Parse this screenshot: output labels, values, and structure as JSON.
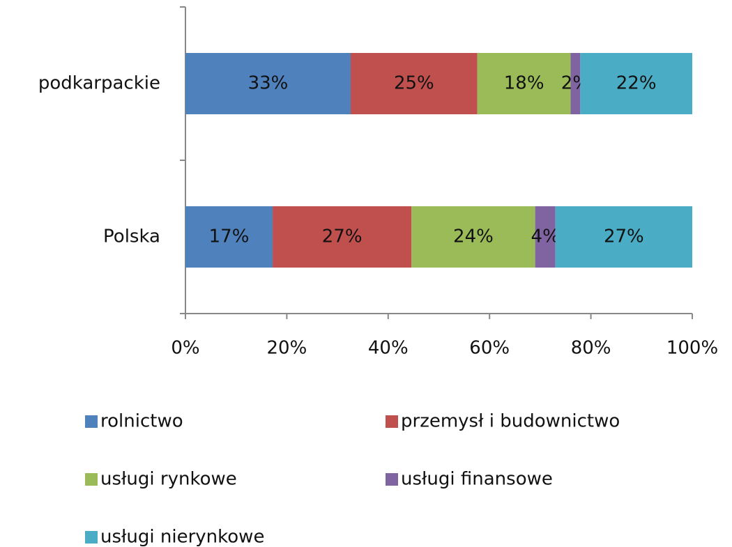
{
  "chart_data": {
    "type": "bar",
    "orientation": "horizontal",
    "stacked": true,
    "categories": [
      "podkarpackie",
      "Polska"
    ],
    "series": [
      {
        "name": "rolnictwo",
        "color": "#4f81bd",
        "values": [
          32.6,
          17.2
        ],
        "value_labels": [
          "33%",
          "17%"
        ]
      },
      {
        "name": "przemysł i budownictwo",
        "color": "#c0504d",
        "values": [
          25.0,
          27.4
        ],
        "value_labels": [
          "25%",
          "27%"
        ]
      },
      {
        "name": "usługi rynkowe",
        "color": "#9bbb59",
        "values": [
          18.4,
          24.4
        ],
        "value_labels": [
          "18%",
          "24%"
        ]
      },
      {
        "name": "usługi finansowe",
        "color": "#8064a2",
        "values": [
          1.9,
          4.0
        ],
        "value_labels": [
          "2%",
          "4%"
        ]
      },
      {
        "name": "usługi nierynkowe",
        "color": "#4bacc6",
        "values": [
          22.1,
          27.0
        ],
        "value_labels": [
          "22%",
          "27%"
        ]
      }
    ],
    "xlim": [
      0,
      100
    ],
    "xticks": [
      {
        "value": 0,
        "label": "0%"
      },
      {
        "value": 20,
        "label": "20%"
      },
      {
        "value": 40,
        "label": "40%"
      },
      {
        "value": 60,
        "label": "60%"
      },
      {
        "value": 80,
        "label": "80%"
      },
      {
        "value": 100,
        "label": "100%"
      }
    ],
    "legend": "bottom"
  }
}
